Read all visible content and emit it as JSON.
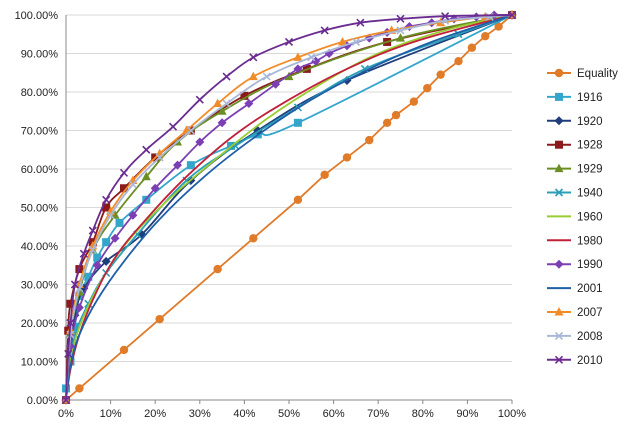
{
  "chart_data": {
    "type": "line",
    "title": "",
    "xlabel": "",
    "ylabel": "",
    "xlim": [
      0,
      100
    ],
    "ylim": [
      0,
      100
    ],
    "x_ticks": [
      0,
      10,
      20,
      30,
      40,
      50,
      60,
      70,
      80,
      90,
      100
    ],
    "y_ticks": [
      0,
      10,
      20,
      30,
      40,
      50,
      60,
      70,
      80,
      90,
      100
    ],
    "x_tick_labels": [
      "0%",
      "10%",
      "20%",
      "30%",
      "40%",
      "50%",
      "60%",
      "70%",
      "80%",
      "90%",
      "100%"
    ],
    "y_tick_labels": [
      "0.00%",
      "10.00%",
      "20.00%",
      "30.00%",
      "40.00%",
      "50.00%",
      "60.00%",
      "70.00%",
      "80.00%",
      "90.00%",
      "100.00%"
    ],
    "grid": "horizontal",
    "legend_position": "right",
    "series": [
      {
        "name": "Equality",
        "color": "#e07b2a",
        "marker": "circle",
        "points": [
          [
            0,
            0
          ],
          [
            3,
            3
          ],
          [
            13,
            13
          ],
          [
            21,
            21
          ],
          [
            34,
            34
          ],
          [
            42,
            42
          ],
          [
            52,
            52
          ],
          [
            58,
            58.5
          ],
          [
            63,
            63
          ],
          [
            68,
            67.5
          ],
          [
            72,
            72
          ],
          [
            74,
            74
          ],
          [
            78,
            77.5
          ],
          [
            81,
            81
          ],
          [
            84,
            84.5
          ],
          [
            88,
            88
          ],
          [
            91,
            91.5
          ],
          [
            94,
            94.5
          ],
          [
            97,
            97
          ],
          [
            100,
            100
          ]
        ]
      },
      {
        "name": "1916",
        "color": "#33a6cc",
        "marker": "square",
        "points": [
          [
            0,
            3
          ],
          [
            1,
            10
          ],
          [
            2,
            19
          ],
          [
            3,
            27
          ],
          [
            5,
            32
          ],
          [
            7,
            37
          ],
          [
            9,
            41
          ],
          [
            12,
            46
          ],
          [
            18,
            52
          ],
          [
            28,
            61
          ],
          [
            37,
            66
          ],
          [
            43,
            69
          ],
          [
            52,
            72
          ],
          [
            100,
            100
          ]
        ]
      },
      {
        "name": "1920",
        "color": "#1f3d7a",
        "marker": "diamond",
        "points": [
          [
            0,
            0
          ],
          [
            1,
            12
          ],
          [
            2,
            22
          ],
          [
            4,
            29
          ],
          [
            9,
            36
          ],
          [
            17,
            43
          ],
          [
            28,
            57
          ],
          [
            43,
            70
          ],
          [
            63,
            83
          ],
          [
            100,
            100
          ]
        ]
      },
      {
        "name": "1928",
        "color": "#8b1a1a",
        "marker": "square",
        "points": [
          [
            0,
            0
          ],
          [
            0.5,
            18
          ],
          [
            1,
            25
          ],
          [
            3,
            34
          ],
          [
            6,
            41
          ],
          [
            9,
            50
          ],
          [
            13,
            55
          ],
          [
            20,
            63
          ],
          [
            28,
            70
          ],
          [
            40,
            79
          ],
          [
            54,
            86
          ],
          [
            72,
            93
          ],
          [
            100,
            100
          ]
        ]
      },
      {
        "name": "1929",
        "color": "#6b8e23",
        "marker": "triangle",
        "points": [
          [
            0,
            0
          ],
          [
            1,
            17
          ],
          [
            3,
            28
          ],
          [
            6,
            39
          ],
          [
            11,
            48
          ],
          [
            18,
            58
          ],
          [
            25,
            67
          ],
          [
            35,
            75
          ],
          [
            50,
            84
          ],
          [
            75,
            94
          ],
          [
            100,
            100
          ]
        ]
      },
      {
        "name": "1940",
        "color": "#2a9fb8",
        "marker": "x",
        "points": [
          [
            0,
            0
          ],
          [
            1,
            10
          ],
          [
            2,
            17
          ],
          [
            5,
            25
          ],
          [
            9,
            33
          ],
          [
            16,
            43
          ],
          [
            27,
            57
          ],
          [
            38,
            66
          ],
          [
            52,
            76
          ],
          [
            67,
            86
          ],
          [
            88,
            95
          ],
          [
            100,
            100
          ]
        ]
      },
      {
        "name": "1960",
        "color": "#9acd32",
        "marker": "none",
        "points": [
          [
            0,
            0
          ],
          [
            1,
            10
          ],
          [
            3,
            19
          ],
          [
            7,
            29
          ],
          [
            13,
            40
          ],
          [
            22,
            51
          ],
          [
            33,
            62
          ],
          [
            45,
            73
          ],
          [
            57,
            82
          ],
          [
            70,
            90
          ],
          [
            85,
            96
          ],
          [
            100,
            100
          ]
        ]
      },
      {
        "name": "1980",
        "color": "#c0203a",
        "marker": "none",
        "points": [
          [
            0,
            0
          ],
          [
            1,
            8
          ],
          [
            3,
            17
          ],
          [
            6,
            26
          ],
          [
            11,
            37
          ],
          [
            18,
            47
          ],
          [
            27,
            58
          ],
          [
            38,
            69
          ],
          [
            50,
            78
          ],
          [
            63,
            86
          ],
          [
            78,
            93
          ],
          [
            100,
            100
          ]
        ]
      },
      {
        "name": "1990",
        "color": "#7b3fb3",
        "marker": "diamond",
        "points": [
          [
            0,
            0
          ],
          [
            1,
            14
          ],
          [
            3,
            24
          ],
          [
            7,
            35
          ],
          [
            11,
            42
          ],
          [
            15,
            48
          ],
          [
            20,
            55
          ],
          [
            25,
            61
          ],
          [
            30,
            67
          ],
          [
            35,
            72
          ],
          [
            41,
            77
          ],
          [
            47,
            82
          ],
          [
            52,
            86
          ],
          [
            56,
            88
          ],
          [
            59,
            90
          ],
          [
            63,
            92
          ],
          [
            68,
            94
          ],
          [
            72,
            95.5
          ],
          [
            77,
            97
          ],
          [
            82,
            98
          ],
          [
            87,
            99
          ],
          [
            92,
            99.5
          ],
          [
            96,
            100
          ],
          [
            100,
            100
          ]
        ]
      },
      {
        "name": "2001",
        "color": "#1f5fa8",
        "marker": "none",
        "points": [
          [
            0,
            0
          ],
          [
            1,
            9
          ],
          [
            3,
            17
          ],
          [
            7,
            26
          ],
          [
            13,
            36
          ],
          [
            21,
            47
          ],
          [
            31,
            58
          ],
          [
            42,
            68
          ],
          [
            55,
            78
          ],
          [
            68,
            86
          ],
          [
            82,
            93
          ],
          [
            100,
            100
          ]
        ]
      },
      {
        "name": "2007",
        "color": "#f28c28",
        "marker": "triangle",
        "points": [
          [
            0,
            0
          ],
          [
            1,
            18
          ],
          [
            3,
            30
          ],
          [
            6,
            40
          ],
          [
            10,
            49
          ],
          [
            15,
            57
          ],
          [
            21,
            64
          ],
          [
            27,
            70
          ],
          [
            34,
            77
          ],
          [
            42,
            84
          ],
          [
            52,
            89
          ],
          [
            62,
            93
          ],
          [
            73,
            96
          ],
          [
            84,
            98
          ],
          [
            94,
            99.5
          ],
          [
            100,
            100
          ]
        ]
      },
      {
        "name": "2008",
        "color": "#a9b8d6",
        "marker": "x",
        "points": [
          [
            0,
            0
          ],
          [
            1,
            17
          ],
          [
            3,
            29
          ],
          [
            6,
            39
          ],
          [
            10,
            48
          ],
          [
            15,
            56
          ],
          [
            21,
            63
          ],
          [
            28,
            70
          ],
          [
            36,
            77
          ],
          [
            45,
            84
          ],
          [
            55,
            89
          ],
          [
            65,
            93
          ],
          [
            75,
            96
          ],
          [
            85,
            98.5
          ],
          [
            95,
            99.5
          ],
          [
            100,
            100
          ]
        ]
      },
      {
        "name": "2010",
        "color": "#6a2c91",
        "marker": "x",
        "points": [
          [
            0,
            0
          ],
          [
            0.5,
            12
          ],
          [
            1,
            20
          ],
          [
            2,
            30
          ],
          [
            4,
            38
          ],
          [
            6,
            44
          ],
          [
            9,
            52
          ],
          [
            13,
            59
          ],
          [
            18,
            65
          ],
          [
            24,
            71
          ],
          [
            30,
            78
          ],
          [
            36,
            84
          ],
          [
            42,
            89
          ],
          [
            50,
            93
          ],
          [
            58,
            96
          ],
          [
            66,
            98
          ],
          [
            75,
            99
          ],
          [
            85,
            99.7
          ],
          [
            100,
            100
          ]
        ]
      }
    ]
  }
}
